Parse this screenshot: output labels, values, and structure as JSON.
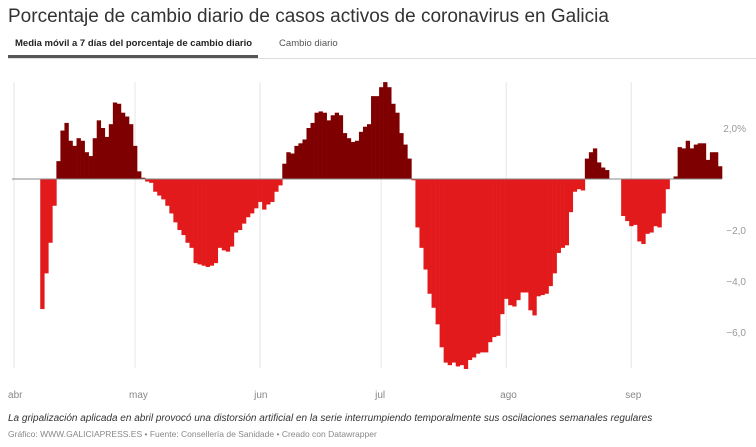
{
  "title": "Porcentaje de cambio diario de casos activos de coronavirus en Galicia",
  "tabs": [
    {
      "label": "Media móvil a 7 días del porcentaje de cambio diario",
      "active": true
    },
    {
      "label": "Cambio diario",
      "active": false
    }
  ],
  "caption": "La gripalización aplicada en abril provocó una distorsión artificial en la serie interrumpiendo temporalmente sus oscilaciones semanales regulares",
  "credits": "Gráfico: WWW.GALICIAPRESS.ES • Fuente: Consellería de Sanidade • Creado con Datawrapper",
  "colors": {
    "positive": "#7f0000",
    "negative": "#e31a1c",
    "zero_line": "#888888",
    "grid": "#e6e6e6"
  },
  "chart_data": {
    "type": "bar",
    "title": "Porcentaje de cambio diario de casos activos de coronavirus en Galicia",
    "xlabel": "",
    "ylabel": "",
    "ylim": [
      -7.6,
      3.9
    ],
    "y_ticks": [
      {
        "value": 2,
        "label": "2,0%"
      },
      {
        "value": -2,
        "label": "−2,0"
      },
      {
        "value": -4,
        "label": "−4,0"
      },
      {
        "value": -6,
        "label": "−6,0"
      }
    ],
    "x_ticks": [
      {
        "date": "04-01",
        "label": "abr"
      },
      {
        "date": "05-01",
        "label": "may"
      },
      {
        "date": "06-01",
        "label": "jun"
      },
      {
        "date": "07-01",
        "label": "jul"
      },
      {
        "date": "08-01",
        "label": "ago"
      },
      {
        "date": "09-01",
        "label": "sep"
      }
    ],
    "grid": "vertical month lines only",
    "dates": [
      "04-01",
      "04-02",
      "04-03",
      "04-04",
      "04-05",
      "04-06",
      "04-07",
      "04-08",
      "04-09",
      "04-10",
      "04-11",
      "04-12",
      "04-13",
      "04-14",
      "04-15",
      "04-16",
      "04-17",
      "04-18",
      "04-19",
      "04-20",
      "04-21",
      "04-22",
      "04-23",
      "04-24",
      "04-25",
      "04-26",
      "04-27",
      "04-28",
      "04-29",
      "04-30",
      "05-01",
      "05-02",
      "05-03",
      "05-04",
      "05-05",
      "05-06",
      "05-07",
      "05-08",
      "05-09",
      "05-10",
      "05-11",
      "05-12",
      "05-13",
      "05-14",
      "05-15",
      "05-16",
      "05-17",
      "05-18",
      "05-19",
      "05-20",
      "05-21",
      "05-22",
      "05-23",
      "05-24",
      "05-25",
      "05-26",
      "05-27",
      "05-28",
      "05-29",
      "05-30",
      "05-31",
      "06-01",
      "06-02",
      "06-03",
      "06-04",
      "06-05",
      "06-06",
      "06-07",
      "06-08",
      "06-09",
      "06-10",
      "06-11",
      "06-12",
      "06-13",
      "06-14",
      "06-15",
      "06-16",
      "06-17",
      "06-18",
      "06-19",
      "06-20",
      "06-21",
      "06-22",
      "06-23",
      "06-24",
      "06-25",
      "06-26",
      "06-27",
      "06-28",
      "06-29",
      "06-30",
      "07-01",
      "07-02",
      "07-03",
      "07-04",
      "07-05",
      "07-06",
      "07-07",
      "07-08",
      "07-09",
      "07-10",
      "07-11",
      "07-12",
      "07-13",
      "07-14",
      "07-15",
      "07-16",
      "07-17",
      "07-18",
      "07-19",
      "07-20",
      "07-21",
      "07-22",
      "07-23",
      "07-24",
      "07-25",
      "07-26",
      "07-27",
      "07-28",
      "07-29",
      "07-30",
      "07-31",
      "08-01",
      "08-02",
      "08-03",
      "08-04",
      "08-05",
      "08-06",
      "08-07",
      "08-08",
      "08-09",
      "08-10",
      "08-11",
      "08-12",
      "08-13",
      "08-14",
      "08-15",
      "08-16",
      "08-17",
      "08-18",
      "08-19",
      "08-20",
      "08-21",
      "08-22",
      "08-23",
      "08-24",
      "08-25",
      "08-26",
      "08-27",
      "08-28",
      "08-29",
      "08-30",
      "08-31",
      "09-01",
      "09-02",
      "09-03",
      "09-04",
      "09-05",
      "09-06",
      "09-07",
      "09-08",
      "09-09",
      "09-10",
      "09-11",
      "09-12",
      "09-13",
      "09-14",
      "09-15",
      "09-16",
      "09-17",
      "09-18",
      "09-19",
      "09-20",
      "09-21",
      "09-22",
      "09-23"
    ],
    "values": [
      0,
      0,
      0,
      0,
      0,
      0,
      0,
      -5.1,
      -3.7,
      -2.5,
      -1.05,
      0.7,
      1.9,
      2.2,
      1.5,
      1.3,
      1.6,
      1.5,
      1.05,
      0.9,
      1.6,
      2.3,
      2.0,
      1.65,
      2.15,
      3.0,
      2.95,
      2.6,
      2.45,
      2.15,
      1.3,
      0.3,
      0.05,
      -0.1,
      -0.15,
      -0.5,
      -0.65,
      -0.8,
      -1.05,
      -1.35,
      -1.7,
      -2.0,
      -2.2,
      -2.5,
      -2.7,
      -3.3,
      -3.35,
      -3.4,
      -3.45,
      -3.4,
      -3.3,
      -2.7,
      -2.8,
      -2.85,
      -2.65,
      -2.1,
      -2.0,
      -1.75,
      -1.5,
      -1.35,
      -1.15,
      -0.9,
      -1.2,
      -1.0,
      -0.9,
      -0.5,
      -0.25,
      0.6,
      1.05,
      1.0,
      1.3,
      1.4,
      1.55,
      2.0,
      2.2,
      2.6,
      2.65,
      2.6,
      2.3,
      2.5,
      2.6,
      2.5,
      1.8,
      1.6,
      1.45,
      1.5,
      1.85,
      2.05,
      2.15,
      3.25,
      3.25,
      3.6,
      3.8,
      3.6,
      2.95,
      2.6,
      1.8,
      1.35,
      0.8,
      -0.05,
      -1.9,
      -2.7,
      -3.55,
      -4.5,
      -5.05,
      -5.7,
      -6.6,
      -7.2,
      -7.3,
      -7.2,
      -7.35,
      -7.3,
      -7.45,
      -7.1,
      -7.0,
      -6.85,
      -6.8,
      -6.8,
      -6.4,
      -6.2,
      -6.15,
      -5.3,
      -4.7,
      -4.95,
      -5.0,
      -4.75,
      -4.45,
      -4.45,
      -5.15,
      -5.35,
      -4.6,
      -4.55,
      -4.5,
      -4.2,
      -3.7,
      -2.9,
      -2.7,
      -2.6,
      -1.3,
      -0.5,
      -0.4,
      -0.45,
      0.8,
      1.05,
      1.2,
      0.65,
      0.45,
      0.35,
      0,
      0,
      0,
      -1.45,
      -1.65,
      -1.85,
      -1.8,
      -2.45,
      -2.55,
      -2.15,
      -2.1,
      -1.85,
      -1.9,
      -1.35,
      -0.4,
      0,
      0.1,
      1.25,
      1.2,
      1.5,
      1.2,
      1.35,
      1.4,
      1.4,
      0.75,
      1.05,
      1.05,
      0.5
    ]
  }
}
